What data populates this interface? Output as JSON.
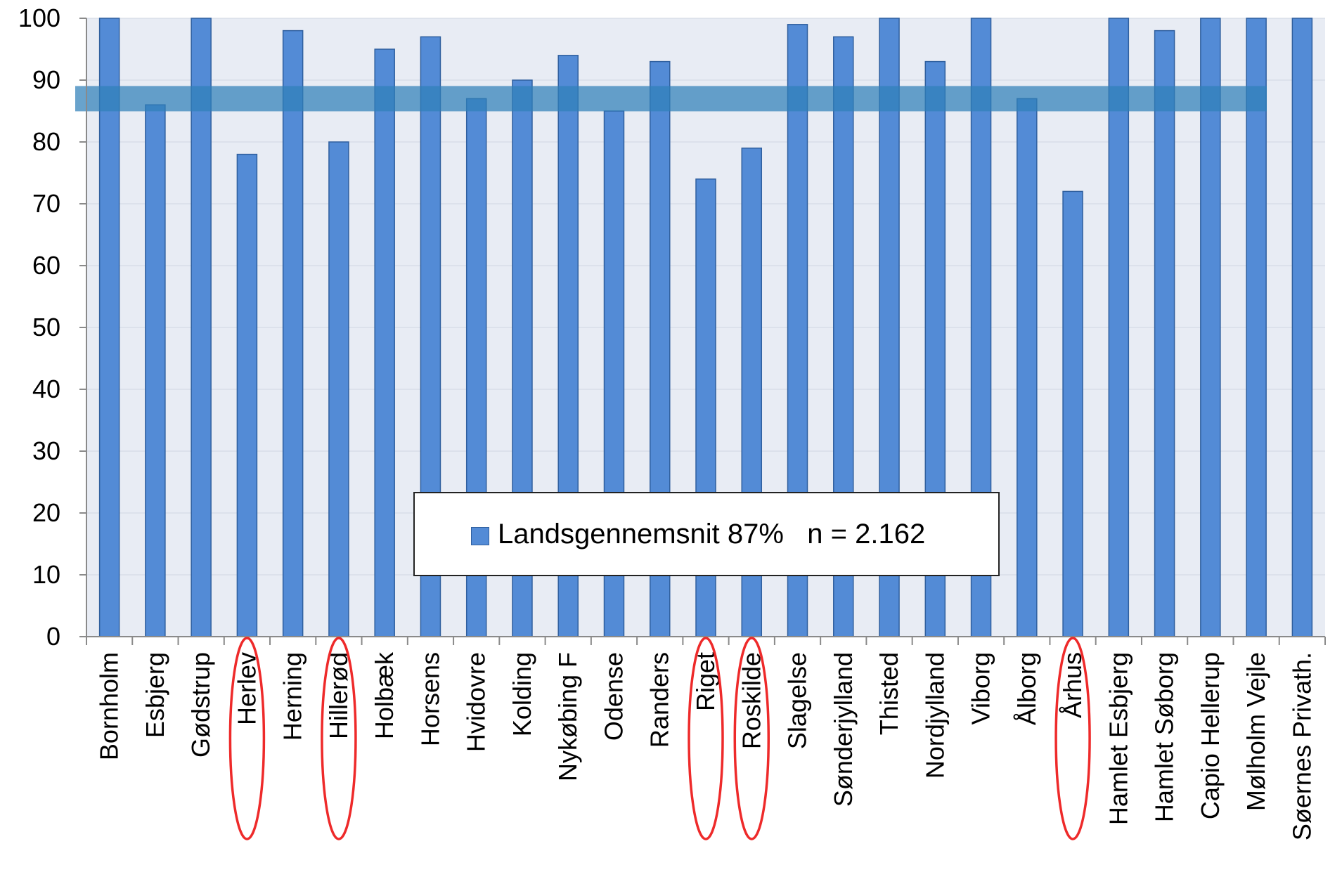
{
  "chart_data": {
    "type": "bar",
    "categories": [
      "Bornholm",
      "Esbjerg",
      "Gødstrup",
      "Herlev",
      "Herning",
      "Hillerød",
      "Holbæk",
      "Horsens",
      "Hvidovre",
      "Kolding",
      "Nykøbing F",
      "Odense",
      "Randers",
      "Riget",
      "Roskilde",
      "Slagelse",
      "Sønderjylland",
      "Thisted",
      "Nordjylland",
      "Viborg",
      "Ålborg",
      "Århus",
      "Hamlet Esbjerg",
      "Hamlet Søborg",
      "Capio Hellerup",
      "Mølholm Vejle",
      "Søernes Privath."
    ],
    "series": [
      {
        "name": "Landsgennemsnit 87%   n = 2.162",
        "values": [
          100,
          86,
          100,
          78,
          98,
          80,
          95,
          97,
          87,
          90,
          94,
          85,
          93,
          74,
          79,
          99,
          97,
          100,
          93,
          100,
          87,
          72,
          100,
          98,
          100,
          100,
          100
        ]
      }
    ],
    "ylim": [
      0,
      100
    ],
    "yticks": [
      0,
      10,
      20,
      30,
      40,
      50,
      60,
      70,
      80,
      90,
      100
    ],
    "grid": false,
    "legend": "center-bottom",
    "reference_band": {
      "value": 87,
      "color": "#2f80b8"
    },
    "highlighted_categories": [
      "Herlev",
      "Hillerød",
      "Riget",
      "Roskilde",
      "Århus"
    ],
    "colors": {
      "bar": "#538bd6",
      "bar_edge": "#2f5f9e",
      "plot_bg": "#e8ecf4",
      "highlight": "#ee2a2a"
    }
  }
}
